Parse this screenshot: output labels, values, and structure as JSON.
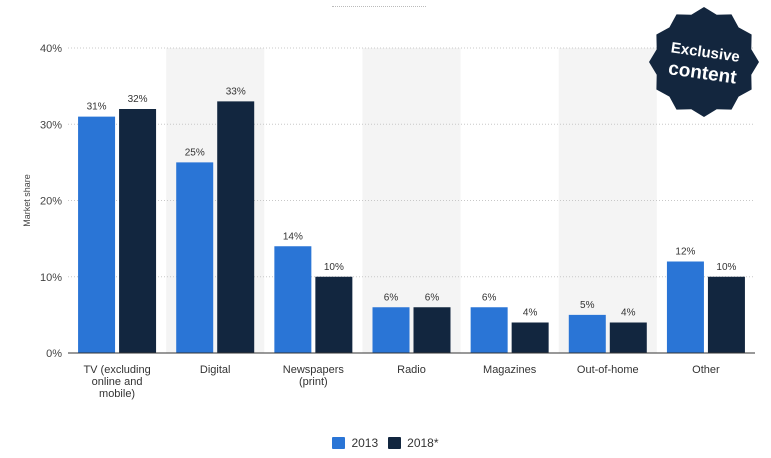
{
  "badge": {
    "line1": "Exclusive",
    "line2": "content"
  },
  "chart_data": {
    "type": "bar",
    "ylabel": "Market share",
    "ylim": [
      0,
      40
    ],
    "yticks": [
      "0%",
      "10%",
      "20%",
      "30%",
      "40%"
    ],
    "grid": true,
    "legend_position": "bottom",
    "categories": [
      [
        "TV (excluding",
        "online and",
        "mobile)"
      ],
      [
        "Digital"
      ],
      [
        "Newspapers",
        "(print)"
      ],
      [
        "Radio"
      ],
      [
        "Magazines"
      ],
      [
        "Out-of-home"
      ],
      [
        "Other"
      ]
    ],
    "series": [
      {
        "name": "2013",
        "color": "#2a75d6",
        "values": [
          31,
          25,
          14,
          6,
          6,
          5,
          12
        ],
        "labels": [
          "31%",
          "25%",
          "14%",
          "6%",
          "6%",
          "5%",
          "12%"
        ]
      },
      {
        "name": "2018*",
        "color": "#12263f",
        "values": [
          32,
          33,
          10,
          6,
          4,
          4,
          10
        ],
        "labels": [
          "32%",
          "33%",
          "10%",
          "6%",
          "4%",
          "4%",
          "10%"
        ]
      }
    ],
    "band_color": "#f4f4f4"
  }
}
